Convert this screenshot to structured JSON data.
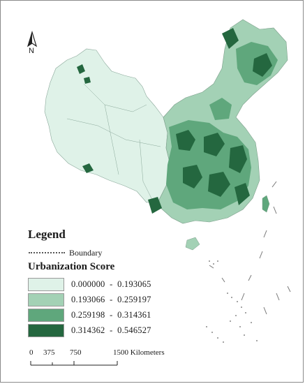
{
  "north_arrow": {
    "letter": "N"
  },
  "legend": {
    "title": "Legend",
    "boundary_label": "Boundary",
    "score_title": "Urbanization Score",
    "classes": [
      {
        "range": "0.000000  -  0.193065",
        "color": "#dff2e8"
      },
      {
        "range": "0.193066  -  0.259197",
        "color": "#a3d1b5"
      },
      {
        "range": "0.259198  -  0.314361",
        "color": "#5fa77c"
      },
      {
        "range": "0.314362  -  0.546527",
        "color": "#24673f"
      }
    ]
  },
  "scale_bar": {
    "labels": [
      "0",
      "375",
      "750",
      "1500 Kilometers"
    ]
  }
}
